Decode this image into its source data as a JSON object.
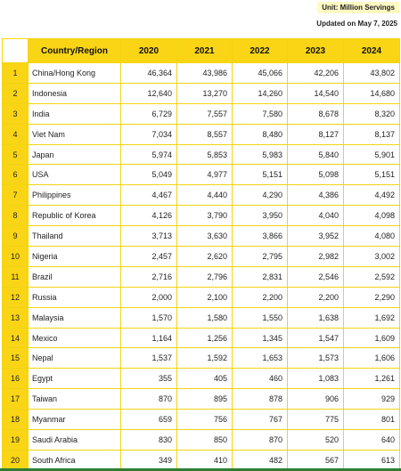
{
  "header": {
    "unit": "Unit: Million Servings",
    "updated": "Updated on May 7, 2025"
  },
  "table": {
    "columns": [
      "",
      "Country/Region",
      "2020",
      "2021",
      "2022",
      "2023",
      "2024"
    ],
    "rows": [
      [
        "1",
        "China/Hong Kong",
        "46,364",
        "43,986",
        "45,066",
        "42,206",
        "43,802"
      ],
      [
        "2",
        "Indonesia",
        "12,640",
        "13,270",
        "14,260",
        "14,540",
        "14,680"
      ],
      [
        "3",
        "India",
        "6,729",
        "7,557",
        "7,580",
        "8,678",
        "8,320"
      ],
      [
        "4",
        "Viet Nam",
        "7,034",
        "8,557",
        "8,480",
        "8,127",
        "8,137"
      ],
      [
        "5",
        "Japan",
        "5,974",
        "5,853",
        "5,983",
        "5,840",
        "5,901"
      ],
      [
        "6",
        "USA",
        "5,049",
        "4,977",
        "5,151",
        "5,098",
        "5,151"
      ],
      [
        "7",
        "Philippines",
        "4,467",
        "4,440",
        "4,290",
        "4,386",
        "4,492"
      ],
      [
        "8",
        "Republic of Korea",
        "4,126",
        "3,790",
        "3,950",
        "4,040",
        "4,098"
      ],
      [
        "9",
        "Thailand",
        "3,713",
        "3,630",
        "3,866",
        "3,952",
        "4,080"
      ],
      [
        "10",
        "Nigeria",
        "2,457",
        "2,620",
        "2,795",
        "2,982",
        "3,002"
      ],
      [
        "11",
        "Brazil",
        "2,716",
        "2,796",
        "2,831",
        "2,546",
        "2,592"
      ],
      [
        "12",
        "Russia",
        "2,000",
        "2,100",
        "2,200",
        "2,200",
        "2,290"
      ],
      [
        "13",
        "Malaysia",
        "1,570",
        "1,580",
        "1,550",
        "1,638",
        "1,692"
      ],
      [
        "14",
        "Mexico",
        "1,164",
        "1,256",
        "1,345",
        "1,547",
        "1,609"
      ],
      [
        "15",
        "Nepal",
        "1,537",
        "1,592",
        "1,653",
        "1,573",
        "1,606"
      ],
      [
        "16",
        "Egypt",
        "355",
        "405",
        "460",
        "1,083",
        "1,261"
      ],
      [
        "17",
        "Taiwan",
        "870",
        "895",
        "878",
        "906",
        "929"
      ],
      [
        "18",
        "Myanmar",
        "659",
        "756",
        "767",
        "775",
        "801"
      ],
      [
        "19",
        "Saudi Arabia",
        "830",
        "850",
        "870",
        "520",
        "640"
      ],
      [
        "20",
        "South Africa",
        "349",
        "410",
        "482",
        "567",
        "613"
      ]
    ]
  },
  "colors": {
    "header_fill": "#f9d516",
    "grid": "#f2d410",
    "unit_badge": "#fff9c4",
    "bottom_bar": "#2e7d32"
  }
}
